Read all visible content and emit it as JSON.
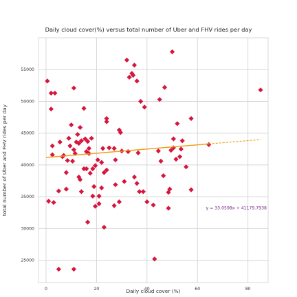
{
  "chart_data": {
    "type": "scatter",
    "title": "Daily cloud cover(%) versus total number of Uber and FHV rides per day",
    "xlabel": "Daily cloud cover (%)",
    "ylabel": "total number of Uber and FHV rides per day",
    "xlim": [
      -3,
      88
    ],
    "ylim": [
      21500,
      60000
    ],
    "xticks": [
      0,
      20,
      40,
      60,
      80
    ],
    "yticks": [
      25000,
      30000,
      35000,
      40000,
      45000,
      50000,
      55000
    ],
    "grid": true,
    "colors": {
      "points": "#d6163e",
      "trend_line": "#f0a018",
      "equation": "#7a1f8a",
      "grid": "#d8d8d8"
    },
    "trend": {
      "slope": 33.0598,
      "intercept": 41179.7938,
      "x_range": [
        0,
        85
      ],
      "label": "y = 33.0598x + 41179.7938"
    },
    "points": [
      [
        0.5,
        53200
      ],
      [
        2,
        51300
      ],
      [
        2,
        48800
      ],
      [
        3.5,
        51300
      ],
      [
        11,
        52100
      ],
      [
        15,
        48900
      ],
      [
        2.5,
        43000
      ],
      [
        2.5,
        41600
      ],
      [
        5.5,
        43600
      ],
      [
        6.5,
        41300
      ],
      [
        7,
        41500
      ],
      [
        8,
        38800
      ],
      [
        8.5,
        40700
      ],
      [
        9,
        44200
      ],
      [
        9.5,
        43000
      ],
      [
        10,
        46300
      ],
      [
        10.5,
        40600
      ],
      [
        11.5,
        41800
      ],
      [
        12,
        43600
      ],
      [
        12.5,
        44800
      ],
      [
        11,
        42400
      ],
      [
        13,
        43400
      ],
      [
        14,
        43800
      ],
      [
        13.5,
        45900
      ],
      [
        15.5,
        44100
      ],
      [
        16,
        42100
      ],
      [
        16.5,
        43700
      ],
      [
        17,
        42600
      ],
      [
        17,
        41800
      ],
      [
        18,
        44200
      ],
      [
        13,
        38100
      ],
      [
        15,
        39400
      ],
      [
        16,
        39400
      ],
      [
        17.5,
        38700
      ],
      [
        18.5,
        39400
      ],
      [
        19.5,
        39900
      ],
      [
        20.5,
        40800
      ],
      [
        22,
        40400
      ],
      [
        23,
        38800
      ],
      [
        24,
        39200
      ],
      [
        22.5,
        42600
      ],
      [
        25,
        42700
      ],
      [
        27,
        42600
      ],
      [
        27.5,
        40800
      ],
      [
        29,
        45500
      ],
      [
        29.5,
        45100
      ],
      [
        30,
        42200
      ],
      [
        31,
        37400
      ],
      [
        32.5,
        42100
      ],
      [
        35,
        38100
      ],
      [
        36.5,
        41900
      ],
      [
        37.5,
        50000
      ],
      [
        39,
        49100
      ],
      [
        38.5,
        35800
      ],
      [
        24,
        46800
      ],
      [
        24,
        47300
      ],
      [
        27.5,
        36900
      ],
      [
        21,
        35100
      ],
      [
        22,
        36400
      ],
      [
        19.5,
        33500
      ],
      [
        21,
        33900
      ],
      [
        27,
        33600
      ],
      [
        29,
        34200
      ],
      [
        36,
        37100
      ],
      [
        37,
        35800
      ],
      [
        40,
        34200
      ],
      [
        42.5,
        33700
      ],
      [
        44.5,
        42200
      ],
      [
        45.5,
        40600
      ],
      [
        46.5,
        38300
      ],
      [
        45,
        50300
      ],
      [
        47,
        52200
      ],
      [
        48.5,
        35700
      ],
      [
        49,
        36200
      ],
      [
        49.5,
        42300
      ],
      [
        50.5,
        42700
      ],
      [
        50.5,
        44100
      ],
      [
        51.5,
        40900
      ],
      [
        52,
        46500
      ],
      [
        53,
        41300
      ],
      [
        53.5,
        42500
      ],
      [
        54,
        43800
      ],
      [
        55.5,
        39700
      ],
      [
        57.5,
        47300
      ],
      [
        57.5,
        36100
      ],
      [
        64.5,
        43200
      ],
      [
        85,
        51800
      ],
      [
        50,
        57800
      ],
      [
        1,
        34300
      ],
      [
        3,
        34100
      ],
      [
        5,
        35900
      ],
      [
        8,
        36200
      ],
      [
        13.5,
        37700
      ],
      [
        14,
        35800
      ],
      [
        16.5,
        31000
      ],
      [
        18.5,
        35100
      ],
      [
        19,
        36600
      ],
      [
        23,
        30200
      ],
      [
        32,
        56500
      ],
      [
        34,
        54400
      ],
      [
        33,
        53800
      ],
      [
        34.5,
        54100
      ],
      [
        35,
        55700
      ],
      [
        36,
        53200
      ],
      [
        48.5,
        33200
      ],
      [
        43,
        25200
      ],
      [
        5,
        23600
      ],
      [
        11,
        23600
      ]
    ]
  }
}
